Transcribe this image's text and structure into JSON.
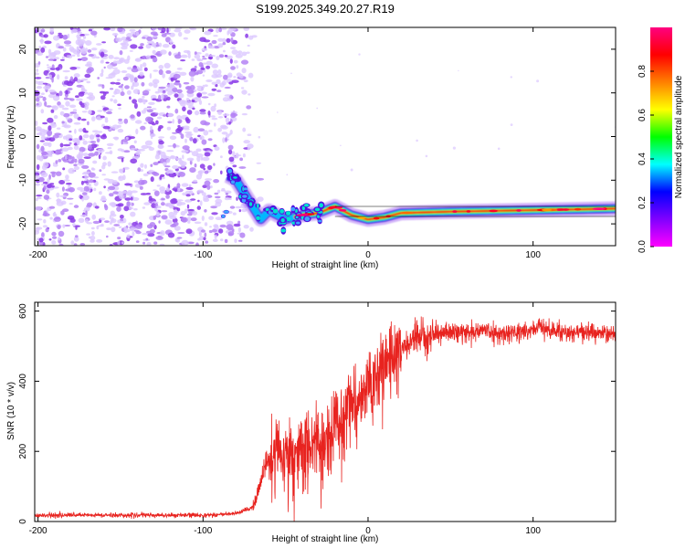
{
  "title": "S199.2025.349.20.27.R19",
  "chart_data": [
    {
      "type": "heatmap",
      "xlabel": "Height of straight line (km)",
      "ylabel": "Frequency (Hz)",
      "xlim": [
        -202,
        150
      ],
      "ylim": [
        -25,
        25
      ],
      "xticks": [
        -200,
        -100,
        0,
        100
      ],
      "yticks": [
        -20,
        -10,
        0,
        10,
        20
      ],
      "colorbar": {
        "label": "Normalized spectral amplitude",
        "range": [
          0.0,
          1.0
        ],
        "ticks": [
          0.0,
          0.2,
          0.4,
          0.6,
          0.8
        ],
        "tick_labels": [
          "0.0",
          "0.2",
          "0.4",
          "0.6",
          "0.8"
        ],
        "colors": [
          "#ff00ff",
          "#8000ff",
          "#0000ff",
          "#00ffff",
          "#00ff00",
          "#ffff00",
          "#ff8000",
          "#ff0000",
          "#ff0080"
        ]
      },
      "noise_region": {
        "x": [
          -202,
          -70
        ],
        "y": [
          -25,
          25
        ],
        "amplitude": [
          0.0,
          0.15
        ]
      },
      "signal_track": [
        {
          "x": -85,
          "y": -9
        },
        {
          "x": -80,
          "y": -10
        },
        {
          "x": -75,
          "y": -13
        },
        {
          "x": -70,
          "y": -16
        },
        {
          "x": -65,
          "y": -19
        },
        {
          "x": -60,
          "y": -17
        },
        {
          "x": -55,
          "y": -18
        },
        {
          "x": -50,
          "y": -19
        },
        {
          "x": -45,
          "y": -18.5
        },
        {
          "x": -40,
          "y": -18
        },
        {
          "x": -30,
          "y": -17.5
        },
        {
          "x": -20,
          "y": -16
        },
        {
          "x": -10,
          "y": -18
        },
        {
          "x": 0,
          "y": -19
        },
        {
          "x": 10,
          "y": -18.5
        },
        {
          "x": 20,
          "y": -17.5
        },
        {
          "x": 50,
          "y": -17.2
        },
        {
          "x": 80,
          "y": -17
        },
        {
          "x": 110,
          "y": -16.8
        },
        {
          "x": 150,
          "y": -16.5
        }
      ]
    },
    {
      "type": "line",
      "xlabel": "Height of straight line (km)",
      "ylabel": "SNR (10 * v/v)",
      "xlim": [
        -202,
        150
      ],
      "ylim": [
        0,
        625
      ],
      "xticks": [
        -200,
        -100,
        0,
        100
      ],
      "yticks": [
        0,
        200,
        400,
        600
      ],
      "line_color": "#e8231f",
      "series": [
        {
          "name": "SNR",
          "x": [
            -202,
            -180,
            -160,
            -140,
            -120,
            -100,
            -80,
            -70,
            -62,
            -55,
            -50,
            -45,
            -40,
            -35,
            -30,
            -25,
            -20,
            -15,
            -10,
            -5,
            0,
            5,
            10,
            15,
            20,
            25,
            30,
            40,
            50,
            60,
            70,
            80,
            90,
            100,
            105,
            110,
            120,
            130,
            140,
            150
          ],
          "y": [
            18,
            18,
            18,
            18,
            18,
            18,
            22,
            40,
            160,
            200,
            180,
            190,
            210,
            220,
            230,
            250,
            270,
            290,
            330,
            360,
            380,
            410,
            440,
            460,
            490,
            510,
            525,
            535,
            540,
            540,
            545,
            535,
            540,
            545,
            560,
            545,
            540,
            540,
            535,
            535
          ]
        }
      ]
    }
  ]
}
